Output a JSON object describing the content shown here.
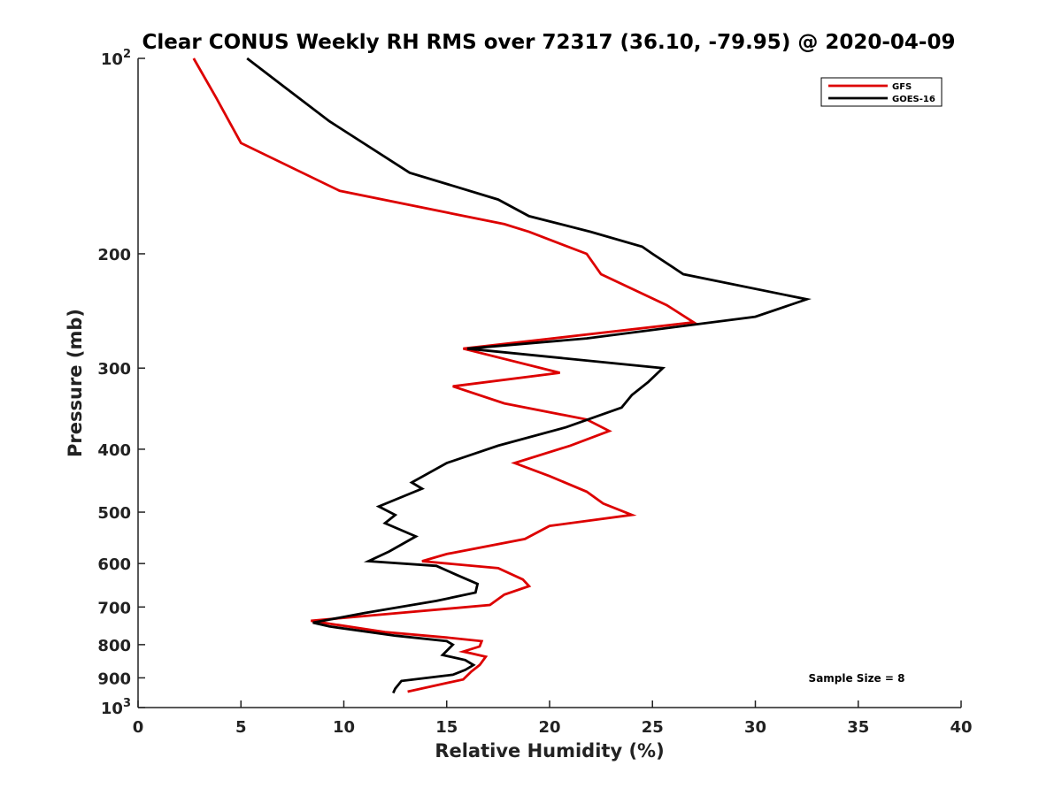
{
  "chart_data": {
    "type": "line",
    "title": "Clear CONUS Weekly RH RMS over 72317 (36.10, -79.95) @ 2020-04-09",
    "xlabel": "Relative Humidity (%)",
    "ylabel": "Pressure (mb)",
    "xlim": [
      0,
      40
    ],
    "ylim": [
      100,
      1000
    ],
    "y_scale": "log",
    "y_reversed": true,
    "grid": false,
    "legend_position": "top-right",
    "x_ticks": [
      "0",
      "5",
      "10",
      "15",
      "20",
      "25",
      "30",
      "35",
      "40"
    ],
    "y_ticks": [
      {
        "value": 100,
        "base": "10",
        "exp": "2"
      },
      {
        "value": 200,
        "label": "200"
      },
      {
        "value": 300,
        "label": "300"
      },
      {
        "value": 400,
        "label": "400"
      },
      {
        "value": 500,
        "label": "500"
      },
      {
        "value": 600,
        "label": "600"
      },
      {
        "value": 700,
        "label": "700"
      },
      {
        "value": 800,
        "label": "800"
      },
      {
        "value": 900,
        "label": "900"
      },
      {
        "value": 1000,
        "base": "10",
        "exp": "3"
      }
    ],
    "series": [
      {
        "name": "GFS",
        "color": "#dd0000",
        "points": [
          [
            2.7,
            100
          ],
          [
            3.8,
            115
          ],
          [
            5.0,
            135
          ],
          [
            9.8,
            160
          ],
          [
            17.8,
            180
          ],
          [
            19.0,
            185
          ],
          [
            21.8,
            200
          ],
          [
            22.5,
            215
          ],
          [
            25.7,
            240
          ],
          [
            27.0,
            255
          ],
          [
            15.8,
            280
          ],
          [
            20.5,
            305
          ],
          [
            15.3,
            320
          ],
          [
            17.8,
            340
          ],
          [
            21.8,
            360
          ],
          [
            22.9,
            375
          ],
          [
            21.0,
            395
          ],
          [
            18.3,
            420
          ],
          [
            20.0,
            440
          ],
          [
            21.8,
            465
          ],
          [
            22.6,
            485
          ],
          [
            24.0,
            505
          ],
          [
            20.0,
            525
          ],
          [
            18.8,
            550
          ],
          [
            15.0,
            580
          ],
          [
            13.8,
            595
          ],
          [
            17.5,
            610
          ],
          [
            18.7,
            635
          ],
          [
            19.0,
            650
          ],
          [
            17.8,
            670
          ],
          [
            17.1,
            695
          ],
          [
            8.4,
            735
          ],
          [
            9.6,
            745
          ],
          [
            12.0,
            765
          ],
          [
            15.0,
            780
          ],
          [
            16.7,
            790
          ],
          [
            16.6,
            805
          ],
          [
            15.8,
            820
          ],
          [
            16.2,
            825
          ],
          [
            16.9,
            835
          ],
          [
            16.6,
            860
          ],
          [
            16.2,
            880
          ],
          [
            15.8,
            905
          ],
          [
            13.1,
            945
          ]
        ]
      },
      {
        "name": "GOES-16",
        "color": "#000000",
        "points": [
          [
            5.3,
            100
          ],
          [
            7.0,
            110
          ],
          [
            9.3,
            125
          ],
          [
            13.2,
            150
          ],
          [
            17.5,
            165
          ],
          [
            19.0,
            175
          ],
          [
            22.0,
            185
          ],
          [
            24.5,
            195
          ],
          [
            25.0,
            200
          ],
          [
            26.5,
            215
          ],
          [
            32.5,
            235
          ],
          [
            30.0,
            250
          ],
          [
            21.8,
            270
          ],
          [
            16.0,
            280
          ],
          [
            25.5,
            300
          ],
          [
            24.8,
            315
          ],
          [
            24.0,
            330
          ],
          [
            23.5,
            345
          ],
          [
            20.8,
            370
          ],
          [
            17.5,
            395
          ],
          [
            15.0,
            420
          ],
          [
            13.3,
            450
          ],
          [
            13.8,
            460
          ],
          [
            11.7,
            490
          ],
          [
            12.5,
            505
          ],
          [
            12.0,
            520
          ],
          [
            13.5,
            545
          ],
          [
            12.2,
            575
          ],
          [
            11.2,
            595
          ],
          [
            14.5,
            605
          ],
          [
            15.5,
            625
          ],
          [
            16.5,
            645
          ],
          [
            16.4,
            665
          ],
          [
            14.5,
            685
          ],
          [
            11.0,
            715
          ],
          [
            8.5,
            740
          ],
          [
            9.3,
            750
          ],
          [
            12.5,
            775
          ],
          [
            15.0,
            790
          ],
          [
            15.3,
            800
          ],
          [
            14.8,
            830
          ],
          [
            15.9,
            845
          ],
          [
            16.3,
            860
          ],
          [
            15.9,
            875
          ],
          [
            15.3,
            890
          ],
          [
            12.8,
            910
          ],
          [
            12.5,
            935
          ],
          [
            12.4,
            950
          ]
        ]
      }
    ],
    "annotations": [
      {
        "text": "Sample Size = 8"
      }
    ]
  }
}
